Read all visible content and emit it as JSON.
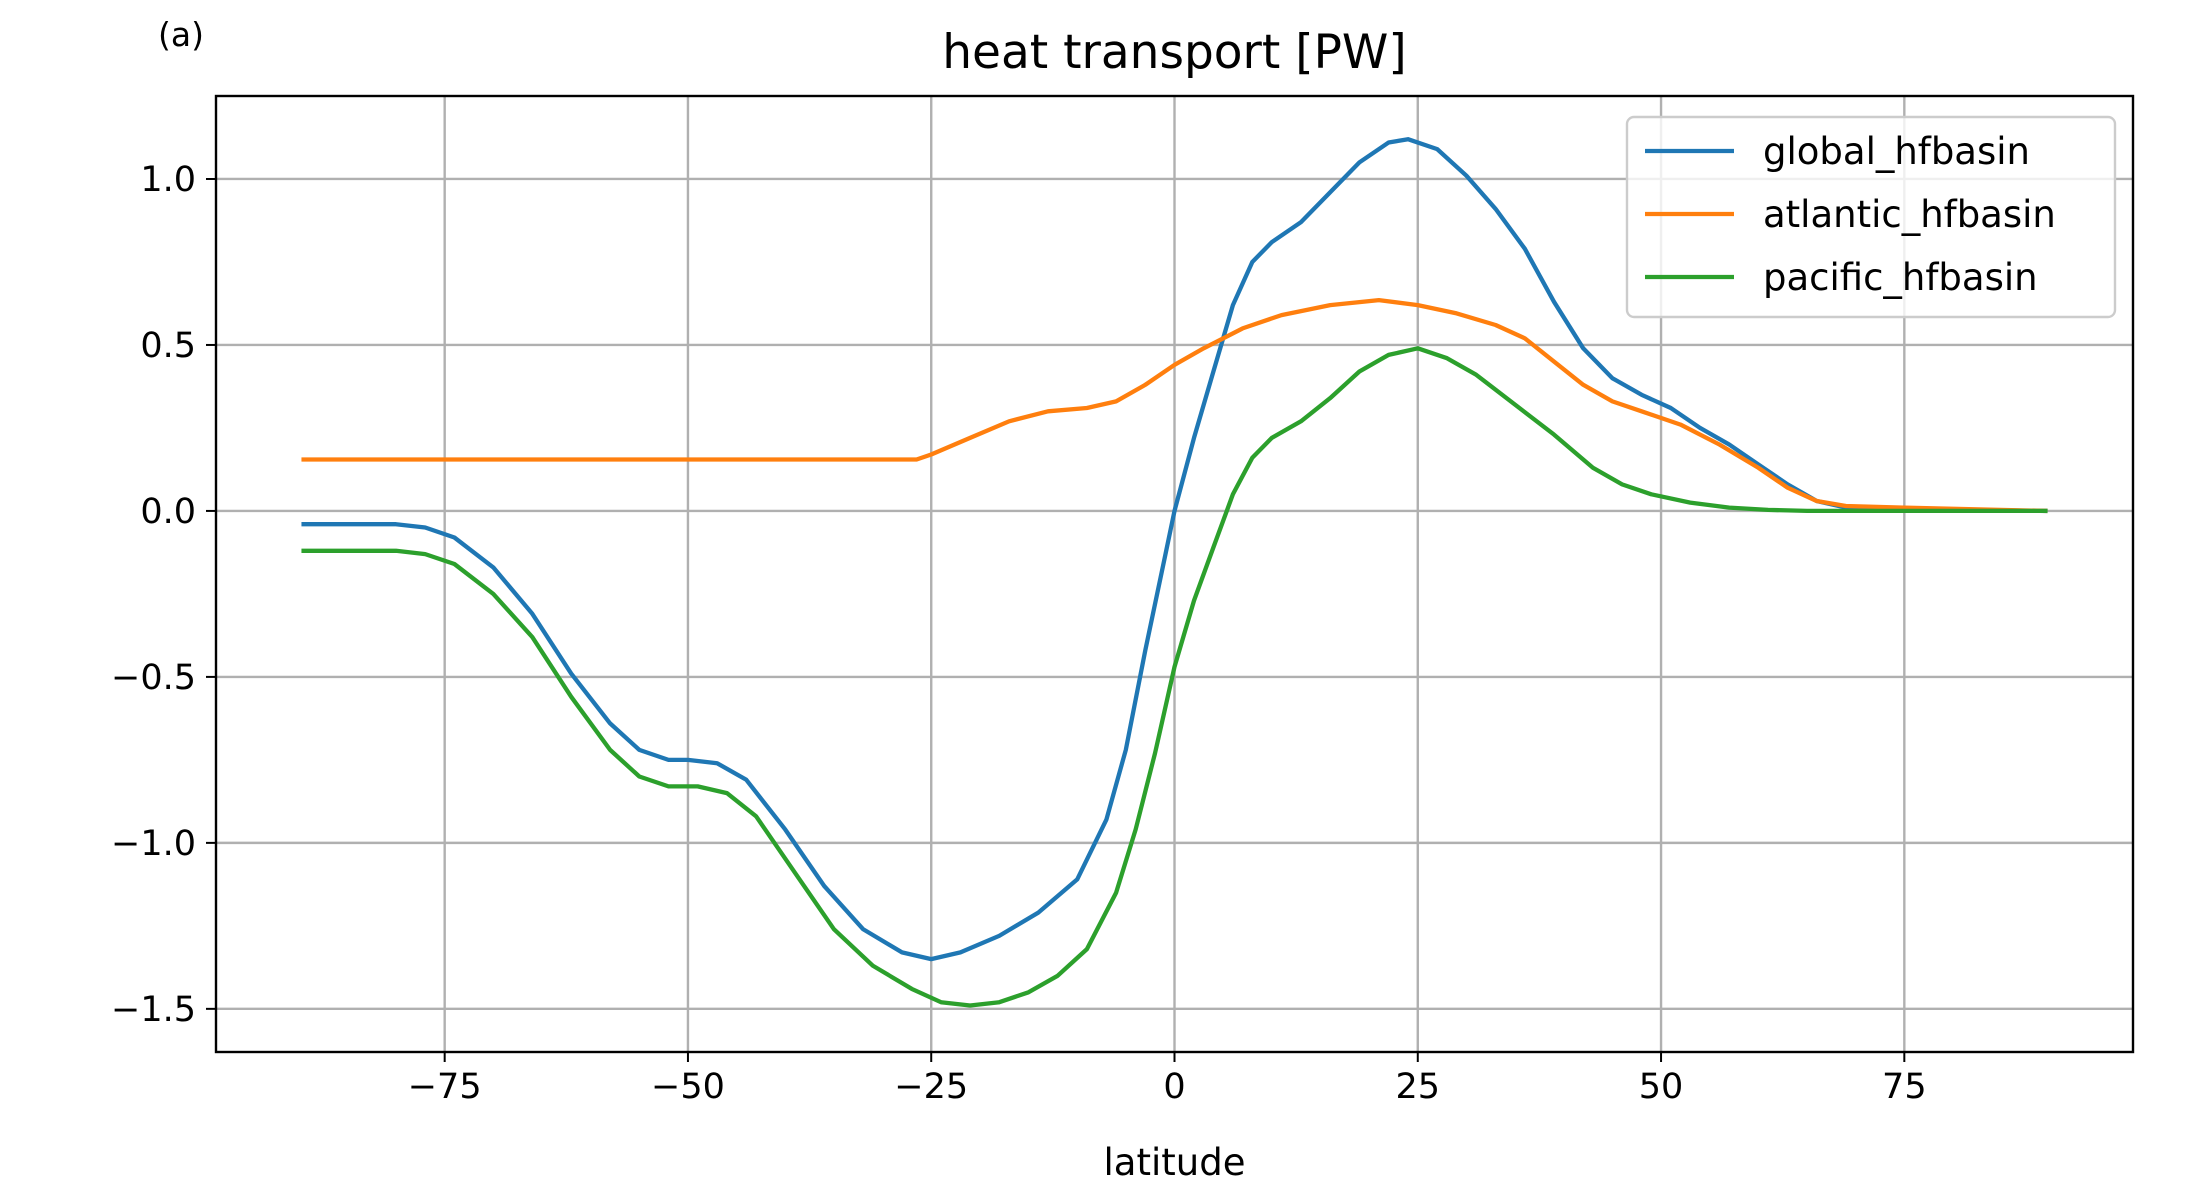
{
  "panel_label": "(a)",
  "chart_data": {
    "type": "line",
    "title": "heat transport [PW]",
    "xlabel": "latitude",
    "ylabel": "",
    "xlim": [
      -98.5,
      98.5
    ],
    "ylim": [
      -1.63,
      1.25
    ],
    "xticks": [
      -75,
      -50,
      -25,
      0,
      25,
      50,
      75
    ],
    "xtick_labels": [
      "−75",
      "−50",
      "−25",
      "0",
      "25",
      "50",
      "75"
    ],
    "yticks": [
      1.0,
      0.5,
      0.0,
      -0.5,
      -1.0,
      -1.5
    ],
    "ytick_labels": [
      "1.0",
      "0.5",
      "0.0",
      "−0.5",
      "−1.0",
      "−1.5"
    ],
    "grid": true,
    "legend_position": "upper right",
    "series": [
      {
        "name": "global_hfbasin",
        "color": "#1f77b4",
        "points": [
          [
            -89.5,
            -0.04
          ],
          [
            -85,
            -0.04
          ],
          [
            -80,
            -0.04
          ],
          [
            -77,
            -0.05
          ],
          [
            -74,
            -0.08
          ],
          [
            -70,
            -0.17
          ],
          [
            -66,
            -0.31
          ],
          [
            -62,
            -0.49
          ],
          [
            -58,
            -0.64
          ],
          [
            -55,
            -0.72
          ],
          [
            -52,
            -0.75
          ],
          [
            -50,
            -0.75
          ],
          [
            -47,
            -0.76
          ],
          [
            -44,
            -0.81
          ],
          [
            -40,
            -0.96
          ],
          [
            -36,
            -1.13
          ],
          [
            -32,
            -1.26
          ],
          [
            -28,
            -1.33
          ],
          [
            -25,
            -1.35
          ],
          [
            -22,
            -1.33
          ],
          [
            -18,
            -1.28
          ],
          [
            -14,
            -1.21
          ],
          [
            -10,
            -1.11
          ],
          [
            -7,
            -0.93
          ],
          [
            -5,
            -0.72
          ],
          [
            -3,
            -0.42
          ],
          [
            -1,
            -0.14
          ],
          [
            0,
            0.0
          ],
          [
            2,
            0.22
          ],
          [
            4,
            0.42
          ],
          [
            6,
            0.62
          ],
          [
            8,
            0.75
          ],
          [
            10,
            0.81
          ],
          [
            13,
            0.87
          ],
          [
            16,
            0.96
          ],
          [
            19,
            1.05
          ],
          [
            22,
            1.11
          ],
          [
            24,
            1.12
          ],
          [
            27,
            1.09
          ],
          [
            30,
            1.01
          ],
          [
            33,
            0.91
          ],
          [
            36,
            0.79
          ],
          [
            39,
            0.63
          ],
          [
            42,
            0.49
          ],
          [
            45,
            0.4
          ],
          [
            48,
            0.35
          ],
          [
            51,
            0.31
          ],
          [
            54,
            0.25
          ],
          [
            57,
            0.2
          ],
          [
            60,
            0.14
          ],
          [
            63,
            0.08
          ],
          [
            66,
            0.03
          ],
          [
            69,
            0.01
          ],
          [
            75,
            0.005
          ],
          [
            89.5,
            0.0
          ]
        ]
      },
      {
        "name": "atlantic_hfbasin",
        "color": "#ff7f0e",
        "points": [
          [
            -89.5,
            0.155
          ],
          [
            -80,
            0.155
          ],
          [
            -70,
            0.155
          ],
          [
            -60,
            0.155
          ],
          [
            -50,
            0.155
          ],
          [
            -40,
            0.155
          ],
          [
            -30,
            0.155
          ],
          [
            -26.5,
            0.155
          ],
          [
            -25,
            0.17
          ],
          [
            -21,
            0.22
          ],
          [
            -17,
            0.27
          ],
          [
            -13,
            0.3
          ],
          [
            -9,
            0.31
          ],
          [
            -6,
            0.33
          ],
          [
            -3,
            0.38
          ],
          [
            0,
            0.44
          ],
          [
            3,
            0.49
          ],
          [
            7,
            0.55
          ],
          [
            11,
            0.59
          ],
          [
            16,
            0.62
          ],
          [
            21,
            0.635
          ],
          [
            25,
            0.62
          ],
          [
            29,
            0.595
          ],
          [
            33,
            0.56
          ],
          [
            36,
            0.52
          ],
          [
            39,
            0.45
          ],
          [
            42,
            0.38
          ],
          [
            45,
            0.33
          ],
          [
            48,
            0.3
          ],
          [
            52,
            0.26
          ],
          [
            56,
            0.2
          ],
          [
            60,
            0.13
          ],
          [
            63,
            0.07
          ],
          [
            66,
            0.03
          ],
          [
            69,
            0.015
          ],
          [
            75,
            0.01
          ],
          [
            89.5,
            0.0
          ]
        ]
      },
      {
        "name": "pacific_hfbasin",
        "color": "#2ca02c",
        "points": [
          [
            -89.5,
            -0.12
          ],
          [
            -85,
            -0.12
          ],
          [
            -80,
            -0.12
          ],
          [
            -77,
            -0.13
          ],
          [
            -74,
            -0.16
          ],
          [
            -70,
            -0.25
          ],
          [
            -66,
            -0.38
          ],
          [
            -62,
            -0.56
          ],
          [
            -58,
            -0.72
          ],
          [
            -55,
            -0.8
          ],
          [
            -52,
            -0.83
          ],
          [
            -49,
            -0.83
          ],
          [
            -46,
            -0.85
          ],
          [
            -43,
            -0.92
          ],
          [
            -39,
            -1.09
          ],
          [
            -35,
            -1.26
          ],
          [
            -31,
            -1.37
          ],
          [
            -27,
            -1.44
          ],
          [
            -24,
            -1.48
          ],
          [
            -21,
            -1.49
          ],
          [
            -18,
            -1.48
          ],
          [
            -15,
            -1.45
          ],
          [
            -12,
            -1.4
          ],
          [
            -9,
            -1.32
          ],
          [
            -6,
            -1.15
          ],
          [
            -4,
            -0.96
          ],
          [
            -2,
            -0.73
          ],
          [
            0,
            -0.47
          ],
          [
            2,
            -0.27
          ],
          [
            4,
            -0.11
          ],
          [
            6,
            0.05
          ],
          [
            8,
            0.16
          ],
          [
            10,
            0.22
          ],
          [
            13,
            0.27
          ],
          [
            16,
            0.34
          ],
          [
            19,
            0.42
          ],
          [
            22,
            0.47
          ],
          [
            25,
            0.49
          ],
          [
            28,
            0.46
          ],
          [
            31,
            0.41
          ],
          [
            35,
            0.32
          ],
          [
            39,
            0.23
          ],
          [
            43,
            0.13
          ],
          [
            46,
            0.08
          ],
          [
            49,
            0.05
          ],
          [
            53,
            0.025
          ],
          [
            57,
            0.01
          ],
          [
            61,
            0.003
          ],
          [
            65,
            0.0
          ],
          [
            89.5,
            0.0
          ]
        ]
      }
    ]
  }
}
